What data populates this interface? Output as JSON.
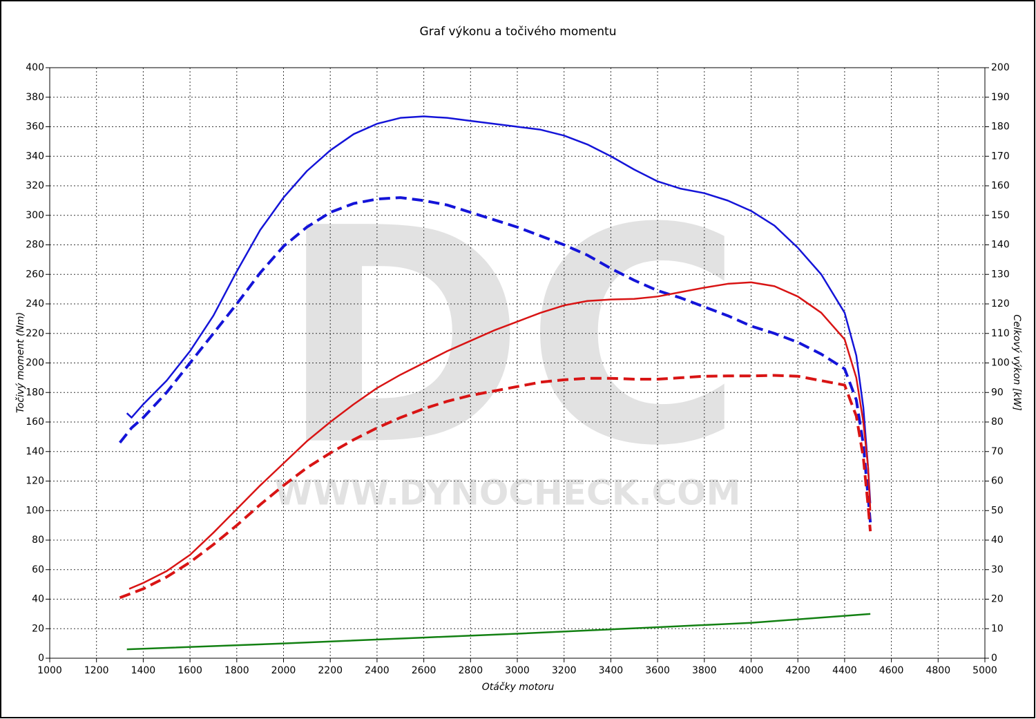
{
  "chart_data": {
    "type": "line",
    "title": "Graf výkonu a točivého momentu",
    "xlabel": "Otáčky motoru",
    "ylabel": "Točivý moment (Nm)",
    "y2label": "Celkový výkon [kW]",
    "watermark": "DC",
    "watermark_url": "WWW.DYNOCHECK.COM",
    "xlim": [
      1000,
      5000
    ],
    "xticks": [
      1000,
      1200,
      1400,
      1600,
      1800,
      2000,
      2200,
      2400,
      2600,
      2800,
      3000,
      3200,
      3400,
      3600,
      3800,
      4000,
      4200,
      4400,
      4600,
      4800,
      5000
    ],
    "ylim": [
      0,
      400
    ],
    "yticks": [
      0,
      20,
      40,
      60,
      80,
      100,
      120,
      140,
      160,
      180,
      200,
      220,
      240,
      260,
      280,
      300,
      320,
      340,
      360,
      380,
      400
    ],
    "y2lim": [
      0,
      200
    ],
    "y2ticks": [
      0,
      10,
      20,
      30,
      40,
      50,
      60,
      70,
      80,
      90,
      100,
      110,
      120,
      130,
      140,
      150,
      160,
      170,
      180,
      190,
      200
    ],
    "grid": true,
    "series": [
      {
        "color": "#1414d8",
        "dashed": false,
        "axis": "y",
        "x": [
          1330,
          1350,
          1400,
          1500,
          1600,
          1700,
          1800,
          1900,
          2000,
          2100,
          2200,
          2300,
          2400,
          2500,
          2600,
          2700,
          2800,
          2900,
          3000,
          3100,
          3200,
          3300,
          3400,
          3500,
          3600,
          3700,
          3800,
          3900,
          4000,
          4100,
          4200,
          4300,
          4400,
          4450,
          4480,
          4500,
          4510
        ],
        "values": [
          166,
          163,
          172,
          188,
          208,
          232,
          262,
          290,
          312,
          330,
          344,
          355,
          362,
          366,
          367,
          366,
          364,
          362,
          360,
          358,
          354,
          348,
          340,
          331,
          323,
          318,
          315,
          310,
          303,
          293,
          278,
          260,
          234,
          205,
          170,
          130,
          105
        ]
      },
      {
        "color": "#1414d8",
        "dashed": true,
        "axis": "y",
        "x": [
          1300,
          1350,
          1400,
          1500,
          1600,
          1700,
          1800,
          1900,
          2000,
          2100,
          2200,
          2300,
          2400,
          2500,
          2600,
          2700,
          2800,
          2900,
          3000,
          3100,
          3200,
          3300,
          3400,
          3500,
          3600,
          3700,
          3800,
          3900,
          4000,
          4100,
          4200,
          4300,
          4400,
          4450,
          4480,
          4500,
          4510
        ],
        "values": [
          146,
          156,
          163,
          180,
          200,
          220,
          240,
          261,
          279,
          292,
          302,
          308,
          311,
          312,
          310,
          307,
          302,
          297,
          292,
          286,
          280,
          273,
          264,
          256,
          249,
          244,
          238,
          232,
          225,
          220,
          214,
          206,
          196,
          175,
          145,
          110,
          92
        ]
      },
      {
        "color": "#d81414",
        "dashed": false,
        "axis": "y2",
        "x": [
          1340,
          1400,
          1500,
          1600,
          1700,
          1800,
          1900,
          2000,
          2100,
          2200,
          2300,
          2400,
          2500,
          2600,
          2700,
          2800,
          2900,
          3000,
          3100,
          3200,
          3300,
          3400,
          3500,
          3600,
          3700,
          3800,
          3900,
          4000,
          4100,
          4200,
          4300,
          4400,
          4450,
          4480,
          4500,
          4510
        ],
        "values": [
          23.5,
          25.5,
          29.5,
          35,
          42.5,
          50.5,
          58.5,
          66,
          73.5,
          80,
          86,
          91.5,
          96,
          100,
          104,
          107.5,
          111,
          114,
          117,
          119.5,
          121,
          121.5,
          121.7,
          122.5,
          124,
          125.5,
          126.8,
          127.3,
          126,
          122.5,
          117,
          108,
          95,
          80,
          65,
          50
        ]
      },
      {
        "color": "#d81414",
        "dashed": true,
        "axis": "y2",
        "x": [
          1300,
          1400,
          1500,
          1600,
          1700,
          1800,
          1900,
          2000,
          2100,
          2200,
          2300,
          2400,
          2500,
          2600,
          2700,
          2800,
          2900,
          3000,
          3100,
          3200,
          3300,
          3400,
          3500,
          3600,
          3700,
          3800,
          3900,
          4000,
          4100,
          4200,
          4300,
          4400,
          4450,
          4480,
          4500,
          4510
        ],
        "values": [
          20.5,
          23.5,
          27.5,
          32.5,
          38.5,
          45,
          52,
          58.5,
          64.5,
          69.5,
          74,
          78,
          81.5,
          84.5,
          87,
          89,
          90.5,
          92,
          93.5,
          94.3,
          94.8,
          94.8,
          94.5,
          94.5,
          95,
          95.5,
          95.6,
          95.6,
          95.8,
          95.5,
          94,
          92.5,
          82,
          68,
          52,
          43
        ]
      },
      {
        "color": "#128012",
        "dashed": false,
        "axis": "y2",
        "x": [
          1330,
          2000,
          2600,
          3000,
          3600,
          4000,
          4510
        ],
        "values": [
          3,
          5,
          7,
          8.3,
          10.5,
          12,
          15
        ]
      }
    ]
  }
}
